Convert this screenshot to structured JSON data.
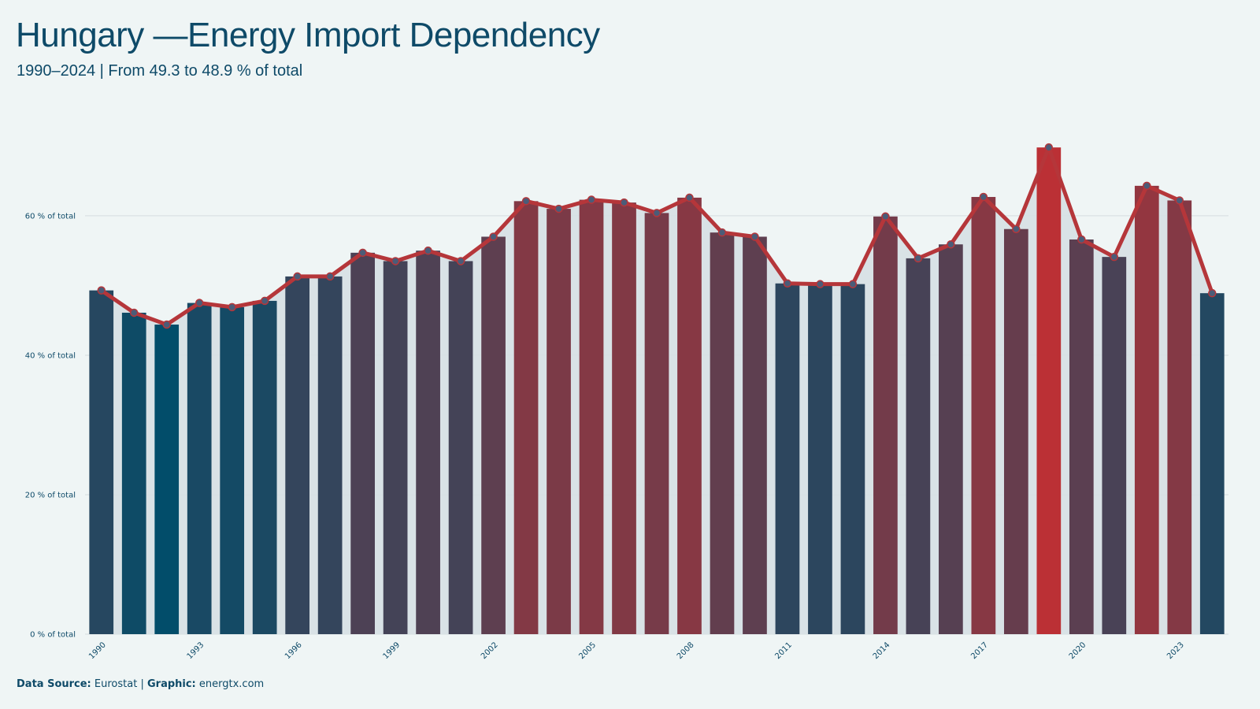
{
  "header": {
    "title": "Hungary —Energy Import Dependency",
    "subtitle": "1990–2024 | From 49.3 to 48.9 % of total"
  },
  "footer": {
    "source_label": "Data Source:",
    "source_value": "Eurostat",
    "separator": "|",
    "graphic_label": "Graphic:",
    "graphic_value": "energtx.com"
  },
  "colors": {
    "background": "#eff5f5",
    "line": "#b5363a",
    "low": "#024d6a",
    "high": "#bb3035",
    "area": "#d6e0e4",
    "grid": "#d5dde0",
    "marker_fill": "#4b5c78"
  },
  "chart_data": {
    "type": "bar",
    "x": [
      1990,
      1991,
      1992,
      1993,
      1994,
      1995,
      1996,
      1997,
      1998,
      1999,
      2000,
      2001,
      2002,
      2003,
      2004,
      2005,
      2006,
      2007,
      2008,
      2009,
      2010,
      2011,
      2012,
      2013,
      2014,
      2015,
      2016,
      2017,
      2018,
      2019,
      2020,
      2021,
      2022,
      2023,
      2024
    ],
    "values": [
      49.3,
      46.1,
      44.4,
      47.5,
      46.9,
      47.8,
      51.3,
      51.3,
      54.7,
      53.5,
      55.0,
      53.5,
      57.0,
      62.1,
      61.0,
      62.3,
      61.9,
      60.4,
      62.6,
      57.6,
      57.0,
      50.3,
      50.2,
      50.2,
      59.9,
      53.9,
      55.9,
      62.7,
      58.1,
      69.8,
      56.6,
      54.1,
      64.3,
      62.2,
      48.9
    ],
    "series": [
      {
        "type": "line",
        "values": [
          49.3,
          46.1,
          44.4,
          47.5,
          46.9,
          47.8,
          51.3,
          51.3,
          54.7,
          53.5,
          55.0,
          53.5,
          57.0,
          62.1,
          61.0,
          62.3,
          61.9,
          60.4,
          62.6,
          57.6,
          57.0,
          50.3,
          50.2,
          50.2,
          59.9,
          53.9,
          55.9,
          62.7,
          58.1,
          69.8,
          56.6,
          54.1,
          64.3,
          62.2,
          48.9
        ]
      }
    ],
    "x_tick_labels": [
      "1990",
      "1993",
      "1996",
      "1999",
      "2002",
      "2005",
      "2008",
      "2011",
      "2014",
      "2017",
      "2020",
      "2023"
    ],
    "y_tick_labels": [
      "0 % of total",
      "20 % of total",
      "40 % of total",
      "60 % of total"
    ],
    "y_ticks": [
      0,
      20,
      40,
      60
    ],
    "ylim": [
      0,
      74
    ],
    "xlabel": "",
    "ylabel": "",
    "grid": true
  }
}
